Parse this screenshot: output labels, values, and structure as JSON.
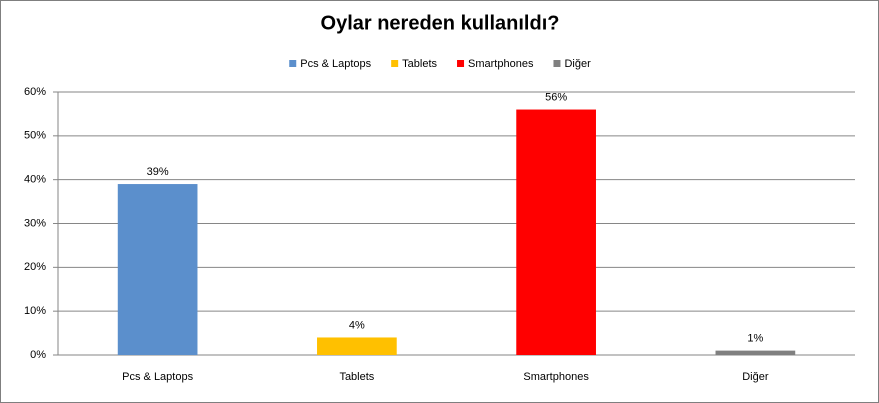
{
  "chart_data": {
    "type": "bar",
    "title": "Oylar nereden kullanıldı?",
    "categories": [
      "Pcs & Laptops",
      "Tablets",
      "Smartphones",
      "Diğer"
    ],
    "values": [
      39,
      4,
      56,
      1
    ],
    "value_labels": [
      "39%",
      "4%",
      "56%",
      "1%"
    ],
    "colors": [
      "#5b8fcc",
      "#ffc000",
      "#ff0000",
      "#808080"
    ],
    "ylim": [
      0,
      60
    ],
    "yticks": [
      {
        "value": 0,
        "label": "0%"
      },
      {
        "value": 10,
        "label": "10%"
      },
      {
        "value": 20,
        "label": "20%"
      },
      {
        "value": 30,
        "label": "30%"
      },
      {
        "value": 40,
        "label": "40%"
      },
      {
        "value": 50,
        "label": "50%"
      },
      {
        "value": 60,
        "label": "60%"
      }
    ],
    "grid": true,
    "legend": "top"
  }
}
